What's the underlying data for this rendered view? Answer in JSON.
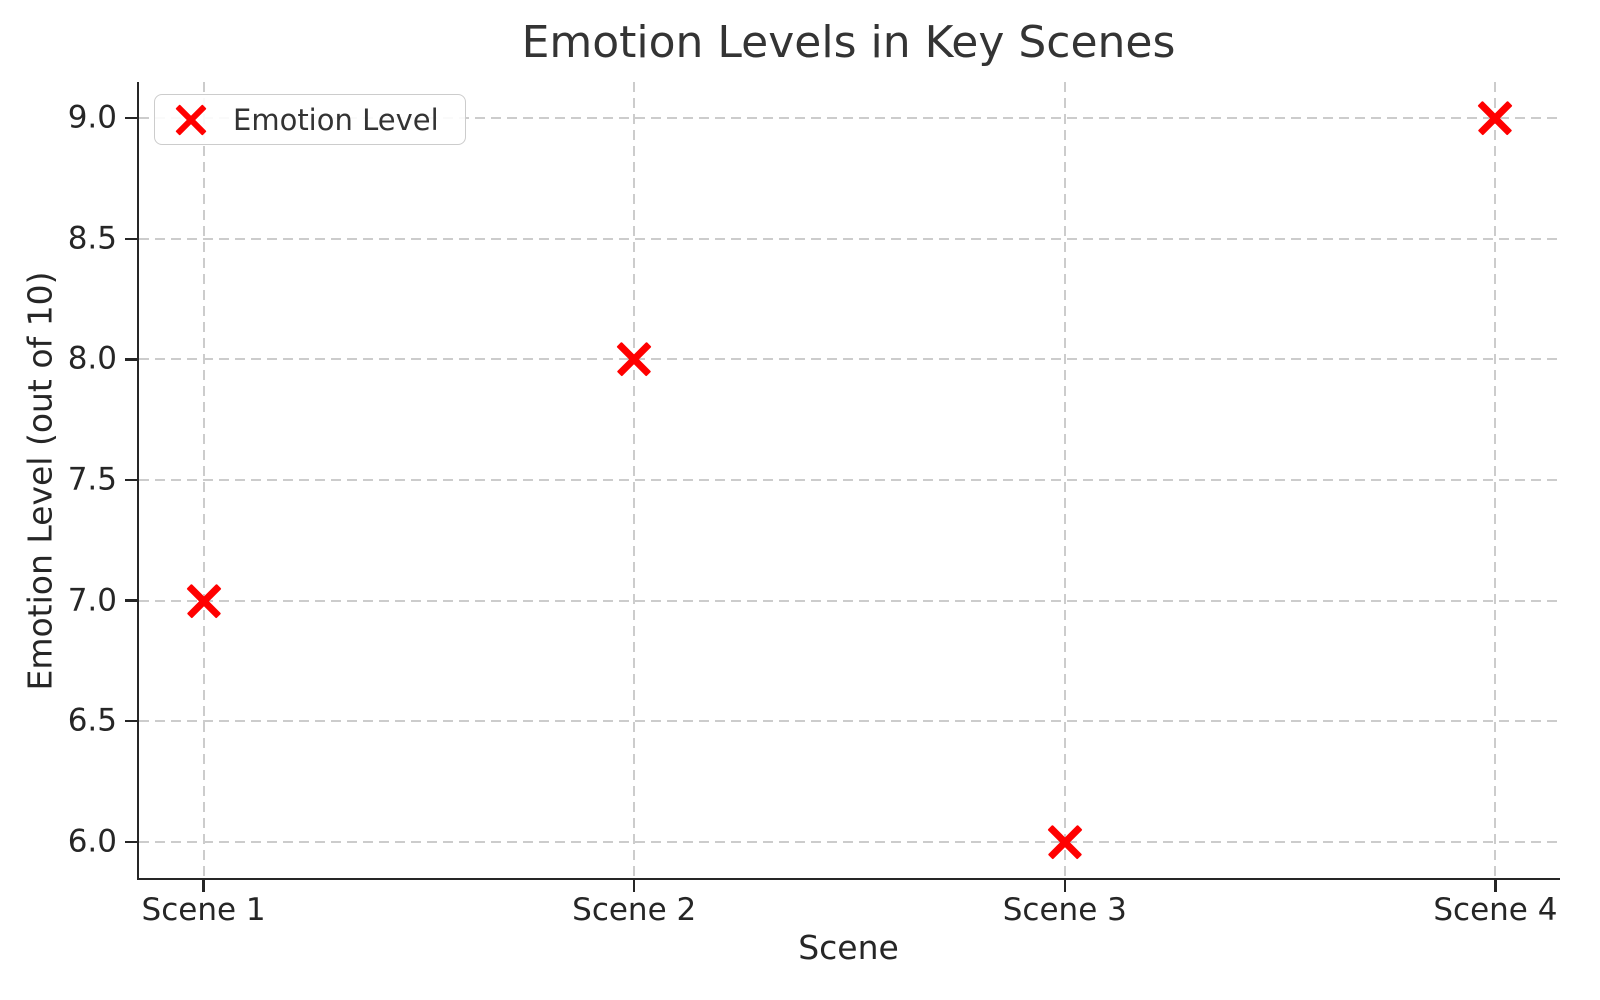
{
  "chart_data": {
    "type": "scatter",
    "title": "Emotion Levels in Key Scenes",
    "xlabel": "Scene",
    "ylabel": "Emotion Level (out of 10)",
    "categories": [
      "Scene 1",
      "Scene 2",
      "Scene 3",
      "Scene 4"
    ],
    "series": [
      {
        "name": "Emotion Level",
        "values": [
          7.0,
          8.0,
          6.0,
          9.0
        ]
      }
    ],
    "legend": [
      "Emotion Level"
    ],
    "legend_position": "upper left",
    "yticks": [
      6.0,
      6.5,
      7.0,
      7.5,
      8.0,
      8.5,
      9.0
    ],
    "ytick_labels": [
      "6.0",
      "6.5",
      "7.0",
      "7.5",
      "8.0",
      "8.5",
      "9.0"
    ],
    "ylim": [
      5.85,
      9.15
    ],
    "xlim": [
      -0.15,
      3.15
    ],
    "grid": "dashed",
    "marker": "x",
    "marker_color": "#ff0000",
    "grid_color": "#cccccc",
    "spine_color": "#262626"
  }
}
